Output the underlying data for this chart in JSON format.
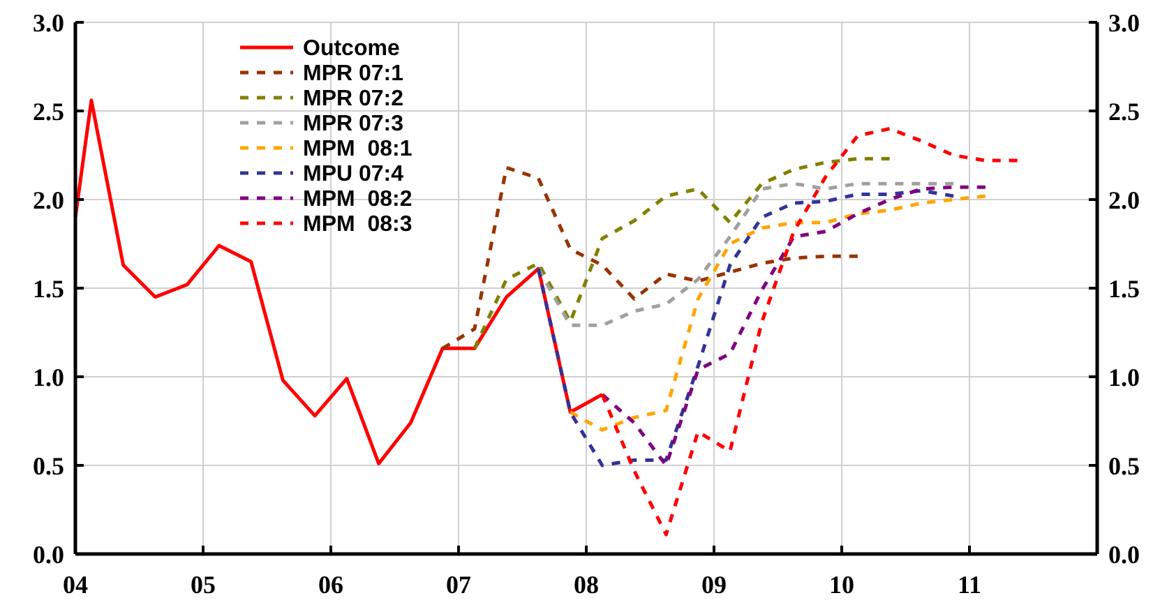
{
  "chart_data": {
    "type": "line",
    "xlim": [
      2004,
      2012
    ],
    "xticks": [
      {
        "value": 2004,
        "label": "04"
      },
      {
        "value": 2005,
        "label": "05"
      },
      {
        "value": 2006,
        "label": "06"
      },
      {
        "value": 2007,
        "label": "07"
      },
      {
        "value": 2008,
        "label": "08"
      },
      {
        "value": 2009,
        "label": "09"
      },
      {
        "value": 2010,
        "label": "10"
      },
      {
        "value": 2011,
        "label": "11"
      },
      {
        "value": 2012,
        "label": null
      }
    ],
    "ylim": [
      0,
      3
    ],
    "yticks": [
      {
        "value": 0,
        "label": "0.0"
      },
      {
        "value": 0.5,
        "label": "0.5"
      },
      {
        "value": 1,
        "label": "1.0"
      },
      {
        "value": 1.5,
        "label": "1.5"
      },
      {
        "value": 2,
        "label": "2.0"
      },
      {
        "value": 2.5,
        "label": "2.5"
      },
      {
        "value": 3,
        "label": "3.0"
      }
    ],
    "y2lim": [
      0,
      3
    ],
    "y2ticks": [
      {
        "value": 0,
        "label": "0.0"
      },
      {
        "value": 0.5,
        "label": "0.5"
      },
      {
        "value": 1,
        "label": "1.0"
      },
      {
        "value": 1.5,
        "label": "1.5"
      },
      {
        "value": 2,
        "label": "2.0"
      },
      {
        "value": 2.5,
        "label": "2.5"
      },
      {
        "value": 3,
        "label": "3.0"
      }
    ],
    "grid": true,
    "legend": "top left",
    "marker": "none",
    "series": [
      {
        "name": "Outcome",
        "color": "#ff0000",
        "line_style": "solid",
        "x": [
          2004.0,
          2004.125,
          2004.375,
          2004.625,
          2004.875,
          2005.125,
          2005.375,
          2005.625,
          2005.875,
          2006.125,
          2006.375,
          2006.625,
          2006.875,
          2007.125,
          2007.375,
          2007.625,
          2007.875,
          2008.125
        ],
        "values": [
          1.9,
          2.56,
          1.63,
          1.45,
          1.52,
          1.74,
          1.65,
          0.98,
          0.78,
          0.99,
          0.51,
          0.74,
          1.16,
          1.16,
          1.45,
          1.61,
          0.8,
          0.9
        ]
      },
      {
        "name": "MPR 07:1",
        "color": "#993300",
        "line_style": "dashed",
        "x": [
          2006.875,
          2007.125,
          2007.375,
          2007.625,
          2007.875,
          2008.125,
          2008.375,
          2008.625,
          2008.875,
          2009.125,
          2009.375,
          2009.625,
          2009.875,
          2010.125
        ],
        "values": [
          1.16,
          1.27,
          2.18,
          2.12,
          1.72,
          1.63,
          1.44,
          1.58,
          1.54,
          1.59,
          1.64,
          1.67,
          1.68,
          1.68
        ]
      },
      {
        "name": "MPR 07:2",
        "color": "#808000",
        "line_style": "dashed",
        "x": [
          2007.125,
          2007.375,
          2007.625,
          2007.875,
          2008.125,
          2008.375,
          2008.625,
          2008.875,
          2009.125,
          2009.375,
          2009.625,
          2009.875,
          2010.125,
          2010.375
        ],
        "values": [
          1.16,
          1.55,
          1.64,
          1.31,
          1.78,
          1.88,
          2.02,
          2.06,
          1.87,
          2.09,
          2.17,
          2.21,
          2.23,
          2.23
        ]
      },
      {
        "name": "MPR 07:3",
        "color": "#a0a0a0",
        "line_style": "dashed",
        "x": [
          2007.625,
          2007.875,
          2008.125,
          2008.375,
          2008.625,
          2008.875,
          2009.125,
          2009.375,
          2009.625,
          2009.875,
          2010.125,
          2010.375,
          2010.625,
          2010.875
        ],
        "values": [
          1.61,
          1.29,
          1.29,
          1.37,
          1.41,
          1.55,
          1.79,
          2.06,
          2.09,
          2.06,
          2.09,
          2.09,
          2.09,
          2.09
        ]
      },
      {
        "name": "MPM  08:1",
        "color": "#ffa500",
        "line_style": "dashed",
        "x": [
          2007.875,
          2008.125,
          2008.375,
          2008.625,
          2008.875,
          2009.125,
          2009.375,
          2009.625,
          2009.875,
          2010.125,
          2010.375,
          2010.625,
          2010.875,
          2011.125
        ],
        "values": [
          0.8,
          0.7,
          0.77,
          0.81,
          1.44,
          1.75,
          1.84,
          1.87,
          1.87,
          1.92,
          1.94,
          1.98,
          2.0,
          2.02
        ]
      },
      {
        "name": "MPU 07:4",
        "color": "#333399",
        "line_style": "dashed",
        "x": [
          2007.625,
          2007.875,
          2008.125,
          2008.375,
          2008.625,
          2008.875,
          2009.125,
          2009.375,
          2009.625,
          2009.875,
          2010.125,
          2010.375,
          2010.625,
          2010.875
        ],
        "values": [
          1.61,
          0.8,
          0.5,
          0.53,
          0.53,
          1.06,
          1.63,
          1.9,
          1.98,
          1.99,
          2.03,
          2.03,
          2.05,
          2.02
        ]
      },
      {
        "name": "MPM  08:2",
        "color": "#800080",
        "line_style": "dashed",
        "x": [
          2008.125,
          2008.375,
          2008.625,
          2008.875,
          2009.125,
          2009.375,
          2009.625,
          2009.875,
          2010.125,
          2010.375,
          2010.625,
          2010.875,
          2011.125
        ],
        "values": [
          0.9,
          0.74,
          0.5,
          1.04,
          1.13,
          1.49,
          1.79,
          1.82,
          1.92,
          2.0,
          2.06,
          2.07,
          2.07
        ]
      },
      {
        "name": "MPM  08:3",
        "color": "#ff0000",
        "line_style": "dashed",
        "x": [
          2008.125,
          2008.375,
          2008.625,
          2008.875,
          2009.125,
          2009.375,
          2009.625,
          2009.875,
          2010.125,
          2010.375,
          2010.625,
          2010.875,
          2011.125,
          2011.375
        ],
        "values": [
          0.9,
          0.47,
          0.11,
          0.69,
          0.58,
          1.31,
          1.82,
          2.13,
          2.36,
          2.4,
          2.33,
          2.25,
          2.22,
          2.22
        ]
      }
    ]
  }
}
